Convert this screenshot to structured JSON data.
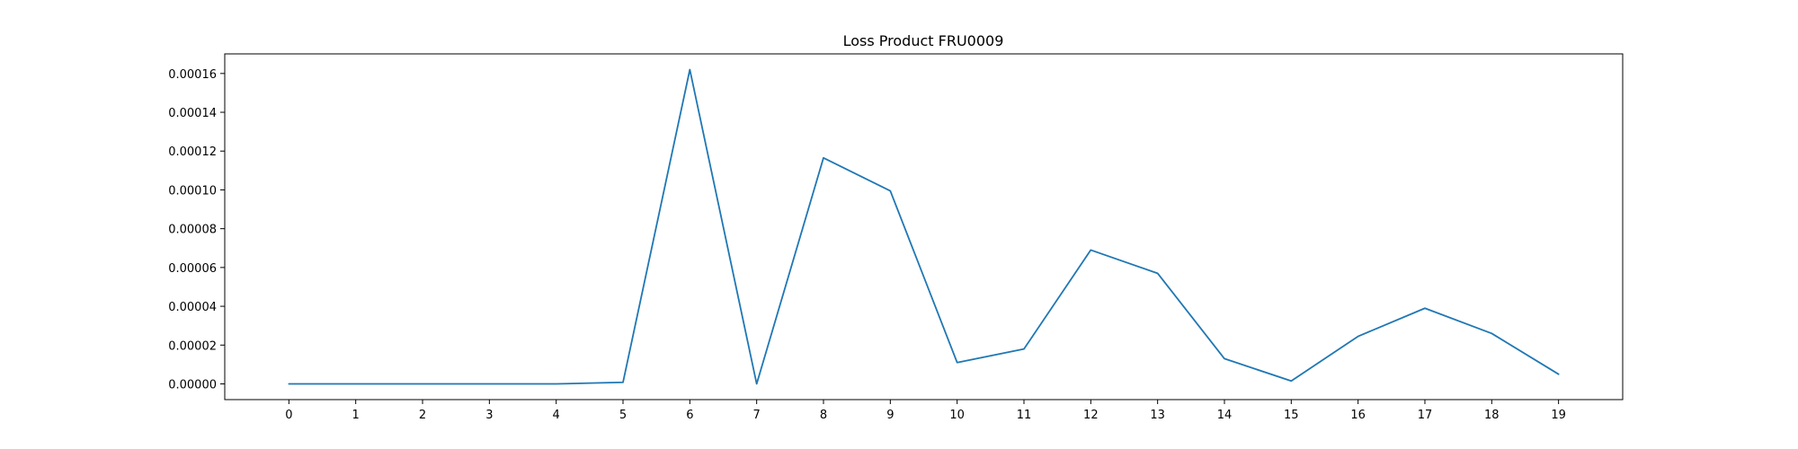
{
  "chart_data": {
    "type": "line",
    "title": "Loss Product FRU0009",
    "xlabel": "",
    "ylabel": "",
    "x": [
      0,
      1,
      2,
      3,
      4,
      5,
      6,
      7,
      8,
      9,
      10,
      11,
      12,
      13,
      14,
      15,
      16,
      17,
      18,
      19
    ],
    "series": [
      {
        "values": [
          0.0,
          0.0,
          0.0,
          0.0,
          0.0,
          8e-07,
          0.000162,
          0.0,
          0.0001165,
          9.95e-05,
          1.1e-05,
          1.8e-05,
          6.9e-05,
          5.7e-05,
          1.3e-05,
          1.5e-06,
          2.45e-05,
          3.9e-05,
          2.6e-05,
          5e-06
        ],
        "color": "#1f77b4"
      }
    ],
    "xlim": [
      -0.96,
      19.96
    ],
    "ylim": [
      -8.1e-06,
      0.0001701
    ],
    "yticks": [
      0.0,
      2e-05,
      4e-05,
      6e-05,
      8e-05,
      0.0001,
      0.00012,
      0.00014,
      0.00016
    ],
    "ytick_labels": [
      "0.00000",
      "0.00002",
      "0.00004",
      "0.00006",
      "0.00008",
      "0.00010",
      "0.00012",
      "0.00014",
      "0.00016"
    ],
    "xtick_labels": [
      "0",
      "1",
      "2",
      "3",
      "4",
      "5",
      "6",
      "7",
      "8",
      "9",
      "10",
      "11",
      "12",
      "13",
      "14",
      "15",
      "16",
      "17",
      "18",
      "19"
    ],
    "grid": false,
    "legend": "none"
  }
}
